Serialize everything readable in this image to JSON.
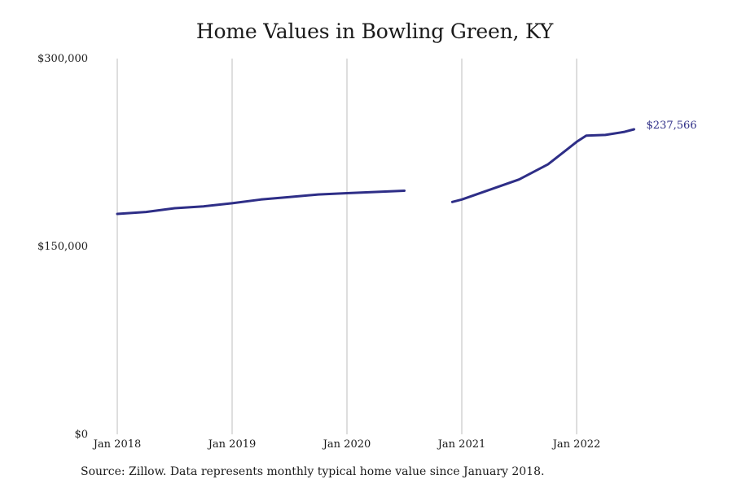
{
  "chart_data": {
    "type": "line",
    "title": "Home Values in Bowling Green, KY",
    "xlabel": "",
    "ylabel": "",
    "ylim": [
      0,
      300000
    ],
    "x_tick_labels": [
      "Jan 2018",
      "Jan 2019",
      "Jan 2020",
      "Jan 2021",
      "Jan 2022"
    ],
    "y_tick_labels": [
      "$0",
      "$150,000",
      "$300,000"
    ],
    "y_tick_values": [
      0,
      150000,
      300000
    ],
    "grid": "vertical",
    "line_color": "#2e2e87",
    "end_label": "$237,566",
    "source": "Source: Zillow. Data represents monthly typical home value since January 2018.",
    "series": [
      {
        "segments": [
          [
            {
              "x": "2018-01",
              "y": 176000
            },
            {
              "x": "2018-04",
              "y": 177500
            },
            {
              "x": "2018-07",
              "y": 180500
            },
            {
              "x": "2018-10",
              "y": 182000
            },
            {
              "x": "2019-01",
              "y": 184500
            },
            {
              "x": "2019-04",
              "y": 187500
            },
            {
              "x": "2019-07",
              "y": 189500
            },
            {
              "x": "2019-10",
              "y": 191500
            },
            {
              "x": "2020-01",
              "y": 192500
            },
            {
              "x": "2020-04",
              "y": 193500
            },
            {
              "x": "2020-07",
              "y": 194500
            }
          ],
          [
            {
              "x": "2020-12",
              "y": 185500
            },
            {
              "x": "2021-01",
              "y": 187500
            },
            {
              "x": "2021-04",
              "y": 195500
            },
            {
              "x": "2021-07",
              "y": 203500
            },
            {
              "x": "2021-10",
              "y": 215500
            },
            {
              "x": "2021-12",
              "y": 227500
            },
            {
              "x": "2022-01",
              "y": 233500
            },
            {
              "x": "2022-02",
              "y": 238500
            },
            {
              "x": "2022-04",
              "y": 239000
            },
            {
              "x": "2022-06",
              "y": 241500
            },
            {
              "x": "2022-07",
              "y": 243500
            }
          ]
        ]
      }
    ]
  }
}
